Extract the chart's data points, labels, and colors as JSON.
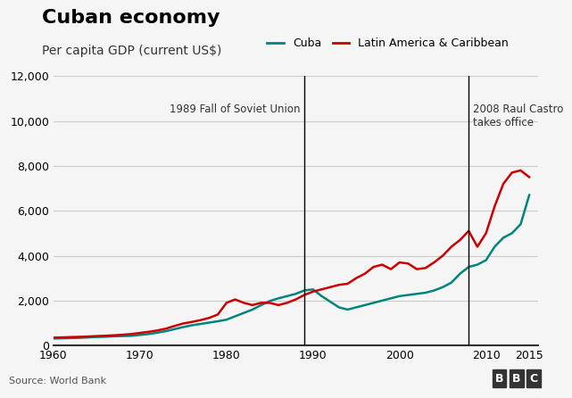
{
  "title": "Cuban economy",
  "subtitle": "Per capita GDP (current US$)",
  "legend_labels": [
    "Cuba",
    "Latin America & Caribbean"
  ],
  "legend_colors": [
    "#00857c",
    "#cc0000"
  ],
  "source": "Source: World Bank",
  "bbc_text": "BBC",
  "vline1_x": 1989,
  "vline1_label": "1989 Fall of Soviet Union",
  "vline2_x": 2008,
  "vline2_label": "2008 Raul Castro\ntakes office",
  "xlim": [
    1960,
    2016
  ],
  "ylim": [
    0,
    12000
  ],
  "yticks": [
    0,
    2000,
    4000,
    6000,
    8000,
    10000,
    12000
  ],
  "xticks": [
    1960,
    1970,
    1980,
    1990,
    2000,
    2010,
    2015
  ],
  "bg_color": "#f5f5f5",
  "grid_color": "#cccccc",
  "title_fontsize": 16,
  "subtitle_fontsize": 10,
  "axis_fontsize": 9,
  "cuba_data": {
    "years": [
      1960,
      1961,
      1962,
      1963,
      1964,
      1965,
      1966,
      1967,
      1968,
      1969,
      1970,
      1971,
      1972,
      1973,
      1974,
      1975,
      1976,
      1977,
      1978,
      1979,
      1980,
      1981,
      1982,
      1983,
      1984,
      1985,
      1986,
      1987,
      1988,
      1989,
      1990,
      1991,
      1992,
      1993,
      1994,
      1995,
      1996,
      1997,
      1998,
      1999,
      2000,
      2001,
      2002,
      2003,
      2004,
      2005,
      2006,
      2007,
      2008,
      2009,
      2010,
      2011,
      2012,
      2013,
      2014,
      2015
    ],
    "values": [
      310,
      320,
      330,
      340,
      360,
      380,
      390,
      410,
      420,
      430,
      470,
      510,
      570,
      640,
      730,
      820,
      900,
      960,
      1020,
      1080,
      1150,
      1300,
      1450,
      1600,
      1800,
      1980,
      2100,
      2200,
      2300,
      2450,
      2500,
      2200,
      1950,
      1700,
      1600,
      1700,
      1800,
      1900,
      2000,
      2100,
      2200,
      2250,
      2300,
      2350,
      2450,
      2600,
      2800,
      3200,
      3500,
      3600,
      3800,
      4400,
      4800,
      5000,
      5400,
      6700
    ]
  },
  "latam_data": {
    "years": [
      1960,
      1961,
      1962,
      1963,
      1964,
      1965,
      1966,
      1967,
      1968,
      1969,
      1970,
      1971,
      1972,
      1973,
      1974,
      1975,
      1976,
      1977,
      1978,
      1979,
      1980,
      1981,
      1982,
      1983,
      1984,
      1985,
      1986,
      1987,
      1988,
      1989,
      1990,
      1991,
      1992,
      1993,
      1994,
      1995,
      1996,
      1997,
      1998,
      1999,
      2000,
      2001,
      2002,
      2003,
      2004,
      2005,
      2006,
      2007,
      2008,
      2009,
      2010,
      2011,
      2012,
      2013,
      2014,
      2015
    ],
    "values": [
      350,
      360,
      375,
      385,
      400,
      420,
      435,
      455,
      480,
      510,
      560,
      610,
      670,
      750,
      870,
      980,
      1050,
      1130,
      1230,
      1380,
      1900,
      2050,
      1900,
      1800,
      1900,
      1900,
      1800,
      1900,
      2050,
      2250,
      2400,
      2500,
      2600,
      2700,
      2750,
      3000,
      3200,
      3500,
      3600,
      3400,
      3700,
      3650,
      3400,
      3450,
      3700,
      4000,
      4400,
      4700,
      5100,
      4400,
      5000,
      6200,
      7200,
      7700,
      7800,
      7500
    ],
    "values_extra": []
  }
}
